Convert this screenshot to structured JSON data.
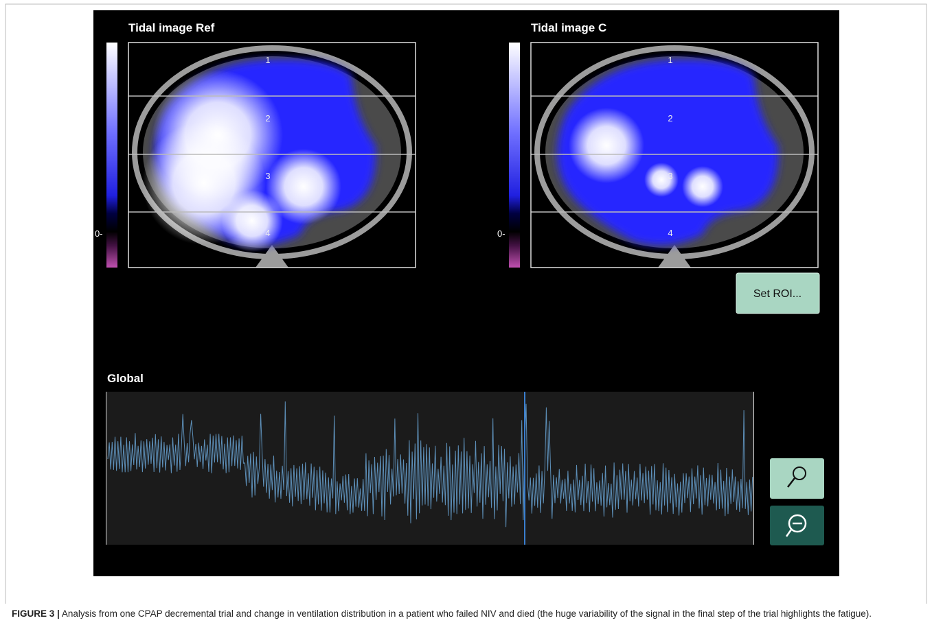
{
  "panels": [
    {
      "title": "Tidal image Ref",
      "scale_label": "0-",
      "roi_labels": [
        "1",
        "2",
        "3",
        "4"
      ]
    },
    {
      "title": "Tidal image C",
      "scale_label": "0-",
      "roi_labels": [
        "1",
        "2",
        "3",
        "4"
      ]
    }
  ],
  "buttons": {
    "set_roi": "Set ROI..."
  },
  "global": {
    "title": "Global"
  },
  "caption": {
    "label": "FIGURE 3 |",
    "text": "Analysis from one CPAP decremental trial and change in ventilation distribution in a patient who failed NIV and died (the huge variability of the signal in the final step of the trial highlights the fatigue)."
  }
}
